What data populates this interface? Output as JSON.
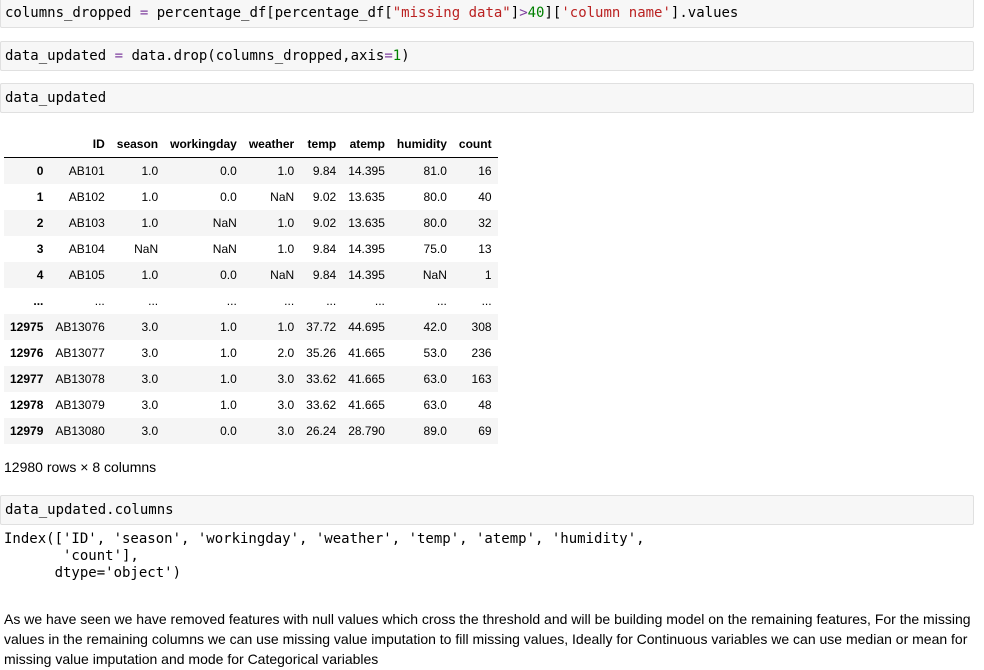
{
  "cells": [
    {
      "code_parts": [
        "columns_dropped ",
        "=",
        " percentage_df[percentage_df[",
        "\"missing data\"",
        "]",
        ">",
        "40",
        "][",
        "'column name'",
        "].values"
      ]
    },
    {
      "code_parts": [
        "data_updated ",
        "=",
        " data.drop(columns_dropped,axis",
        "=",
        "1",
        ")"
      ]
    },
    {
      "code_parts": [
        "data_updated"
      ]
    },
    {
      "code_parts": [
        "data_updated.columns"
      ]
    }
  ],
  "dataframe": {
    "columns": [
      "",
      "ID",
      "season",
      "workingday",
      "weather",
      "temp",
      "atemp",
      "humidity",
      "count"
    ],
    "rows": [
      [
        "0",
        "AB101",
        "1.0",
        "0.0",
        "1.0",
        "9.84",
        "14.395",
        "81.0",
        "16"
      ],
      [
        "1",
        "AB102",
        "1.0",
        "0.0",
        "NaN",
        "9.02",
        "13.635",
        "80.0",
        "40"
      ],
      [
        "2",
        "AB103",
        "1.0",
        "NaN",
        "1.0",
        "9.02",
        "13.635",
        "80.0",
        "32"
      ],
      [
        "3",
        "AB104",
        "NaN",
        "NaN",
        "1.0",
        "9.84",
        "14.395",
        "75.0",
        "13"
      ],
      [
        "4",
        "AB105",
        "1.0",
        "0.0",
        "NaN",
        "9.84",
        "14.395",
        "NaN",
        "1"
      ],
      [
        "...",
        "...",
        "...",
        "...",
        "...",
        "...",
        "...",
        "...",
        "..."
      ],
      [
        "12975",
        "AB13076",
        "3.0",
        "1.0",
        "1.0",
        "37.72",
        "44.695",
        "42.0",
        "308"
      ],
      [
        "12976",
        "AB13077",
        "3.0",
        "1.0",
        "2.0",
        "35.26",
        "41.665",
        "53.0",
        "236"
      ],
      [
        "12977",
        "AB13078",
        "3.0",
        "1.0",
        "3.0",
        "33.62",
        "41.665",
        "63.0",
        "163"
      ],
      [
        "12978",
        "AB13079",
        "3.0",
        "1.0",
        "3.0",
        "33.62",
        "41.665",
        "63.0",
        "48"
      ],
      [
        "12979",
        "AB13080",
        "3.0",
        "0.0",
        "3.0",
        "26.24",
        "28.790",
        "89.0",
        "69"
      ]
    ],
    "shape_text": "12980 rows × 8 columns"
  },
  "index_output": "Index(['ID', 'season', 'workingday', 'weather', 'temp', 'atemp', 'humidity',\n       'count'],\n      dtype='object')",
  "markdown_text": "As we have seen we have removed features with null values which cross the threshold and will be building model on the remaining features, For the missing values in the remaining columns we can use missing value imputation to fill missing values, Ideally for Continuous variables we can use median or mean for missing value imputation and mode for Categorical variables"
}
